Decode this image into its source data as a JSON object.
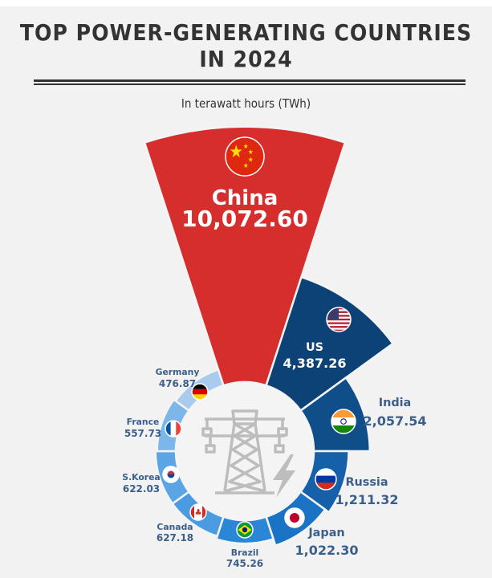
{
  "chart_data": {
    "type": "radial-bar",
    "title": "TOP POWER-GENERATING COUNTRIES IN 2024",
    "title_lines": [
      "TOP POWER-GENERATING COUNTRIES",
      "IN 2024"
    ],
    "subtitle": "In terawatt hours (TWh)",
    "unit": "TWh",
    "categories": [
      "China",
      "US",
      "India",
      "Russia",
      "Japan",
      "Brazil",
      "Canada",
      "S.Korea",
      "France",
      "Germany"
    ],
    "values": [
      10072.6,
      4387.26,
      2057.54,
      1211.32,
      1022.3,
      745.26,
      627.18,
      622.03,
      557.73,
      476.87
    ],
    "value_labels": [
      "10,072.60",
      "4,387.26",
      "2,057.54",
      "1,211.32",
      "1,022.30",
      "745.26",
      "627.18",
      "622.03",
      "557.73",
      "476.87"
    ],
    "colors": [
      "#d62d2d",
      "#0d4277",
      "#0f4e89",
      "#1560a8",
      "#1b73c6",
      "#2a86d6",
      "#4a9be2",
      "#5ba5e4",
      "#7db7ea",
      "#a9ccee"
    ],
    "flags": [
      "china-flag",
      "us-flag",
      "india-flag",
      "russia-flag",
      "japan-flag",
      "brazil-flag",
      "canada-flag",
      "south-korea-flag",
      "france-flag",
      "germany-flag"
    ],
    "center_icons": [
      "transmission-tower-icon",
      "lightning-bolt-icon"
    ]
  }
}
